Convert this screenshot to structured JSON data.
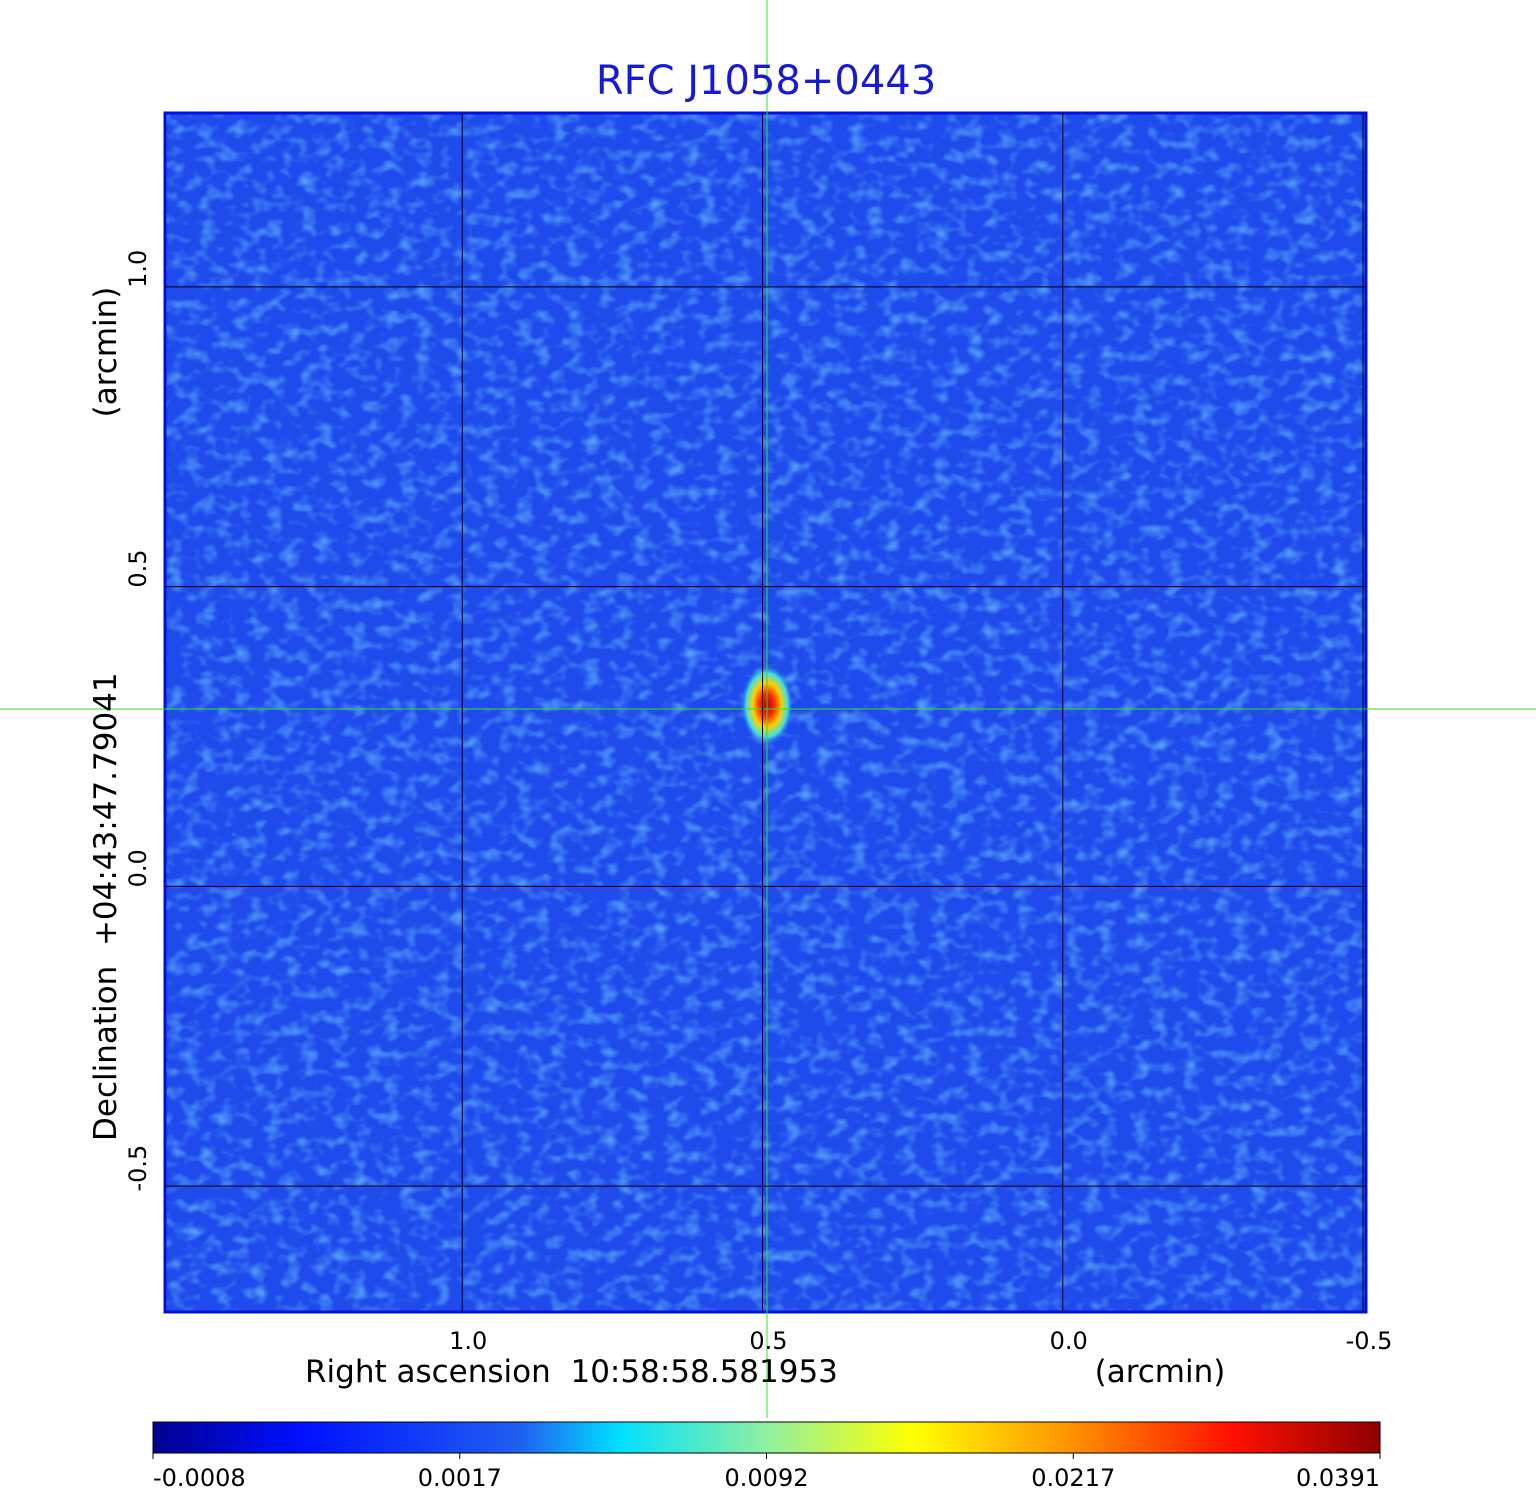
{
  "chart_data": {
    "type": "image",
    "title": "RFC J1058+0443",
    "x_label": "Right ascension  10:58:58.581953",
    "x_unit": "(arcmin)",
    "y_label": "Declination  +04:43:47.79041",
    "y_unit": "(arcmin)",
    "xlim": [
      1.495,
      -0.505
    ],
    "ylim": [
      -0.71,
      1.29
    ],
    "xticks": [
      {
        "value": 1,
        "label": "1.0"
      },
      0.5,
      {
        "value": 0,
        "label": "0.0"
      },
      -0.5
    ],
    "yticks": [
      {
        "value": 1,
        "label": "1.0"
      },
      0.5,
      {
        "value": 0,
        "label": "0.0"
      },
      -0.5
    ],
    "grid": true,
    "colorbar_ticks": [
      -0.0008,
      0.0017,
      0.0092,
      0.0217,
      0.0391
    ]
  }
}
